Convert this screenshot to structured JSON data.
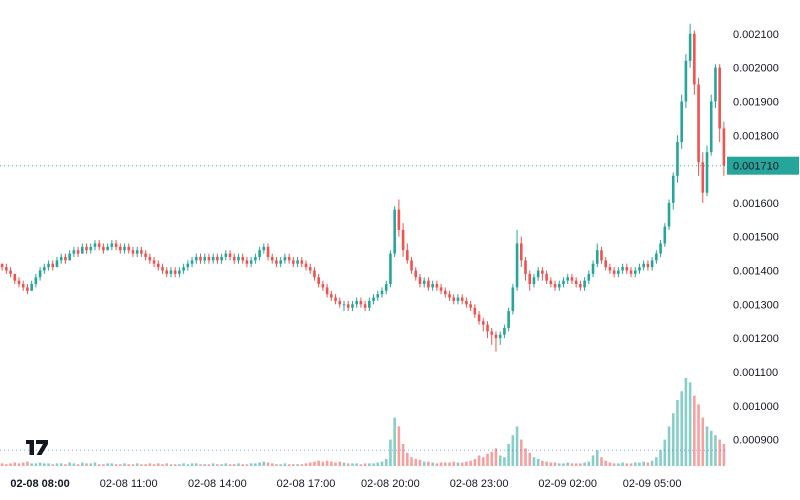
{
  "chart_data": {
    "type": "candlestick",
    "title": "",
    "last_price": "0.001710",
    "last_price_value": 0.00171,
    "price_scale": 1e-05,
    "ylim": [
      0.00081,
      0.0022
    ],
    "grid": "off",
    "legend_position": "none",
    "colors": {
      "up": "#26a69a",
      "down": "#ef5350",
      "badge_bg": "#26a69a",
      "badge_text": "#ffffff",
      "price_line": "#26a69a",
      "volume_line": "#2962ff",
      "axis_text": "#131722",
      "background": "#ffffff",
      "logo": "#131722"
    },
    "price_axis_labels": [
      "0.002100",
      "0.002000",
      "0.001900",
      "0.001800",
      "0.001600",
      "0.001500",
      "0.001400",
      "0.001300",
      "0.001200",
      "0.001100",
      "0.001000",
      "0.000900"
    ],
    "time_axis_labels": [
      {
        "label": "02-08 08:00",
        "index": 9,
        "bold": true
      },
      {
        "label": "02-08 11:00",
        "index": 30
      },
      {
        "label": "02-08 14:00",
        "index": 51
      },
      {
        "label": "02-08 17:00",
        "index": 72
      },
      {
        "label": "02-08 20:00",
        "index": 92
      },
      {
        "label": "02-08 23:00",
        "index": 113
      },
      {
        "label": "02-09 02:00",
        "index": 134
      },
      {
        "label": "02-09 05:00",
        "index": 154
      }
    ],
    "volume_baseline_pct": 18,
    "candles_format": [
      "open",
      "high",
      "low",
      "close",
      "volume_pct_of_max"
    ],
    "candles": [
      [
        142,
        142,
        140,
        141,
        3
      ],
      [
        141,
        142,
        139,
        140,
        2
      ],
      [
        140,
        141,
        138,
        139,
        3
      ],
      [
        139,
        139,
        136,
        137,
        4
      ],
      [
        137,
        138,
        135,
        136,
        3
      ],
      [
        136,
        137,
        134,
        135,
        4
      ],
      [
        135,
        136,
        133,
        134,
        5
      ],
      [
        134,
        137,
        134,
        136,
        3
      ],
      [
        136,
        139,
        135,
        138,
        3
      ],
      [
        138,
        141,
        137,
        140,
        4
      ],
      [
        140,
        142,
        139,
        141,
        3
      ],
      [
        141,
        143,
        140,
        142,
        3
      ],
      [
        142,
        143,
        140,
        141,
        2
      ],
      [
        141,
        144,
        141,
        143,
        3
      ],
      [
        143,
        145,
        142,
        144,
        3
      ],
      [
        144,
        145,
        142,
        143,
        2
      ],
      [
        143,
        146,
        143,
        145,
        4
      ],
      [
        145,
        147,
        144,
        146,
        3
      ],
      [
        146,
        147,
        144,
        145,
        2
      ],
      [
        145,
        148,
        145,
        147,
        4
      ],
      [
        147,
        148,
        145,
        146,
        3
      ],
      [
        146,
        148,
        145,
        147,
        3
      ],
      [
        147,
        149,
        146,
        148,
        4
      ],
      [
        148,
        149,
        146,
        147,
        2
      ],
      [
        147,
        148,
        145,
        146,
        2
      ],
      [
        146,
        148,
        146,
        147,
        3
      ],
      [
        147,
        149,
        146,
        148,
        3
      ],
      [
        148,
        149,
        146,
        147,
        2
      ],
      [
        147,
        148,
        145,
        146,
        2
      ],
      [
        146,
        148,
        145,
        147,
        3
      ],
      [
        147,
        148,
        145,
        146,
        2
      ],
      [
        146,
        147,
        144,
        145,
        2
      ],
      [
        145,
        147,
        144,
        146,
        3
      ],
      [
        146,
        147,
        144,
        145,
        2
      ],
      [
        145,
        146,
        143,
        144,
        2
      ],
      [
        144,
        145,
        142,
        143,
        3
      ],
      [
        143,
        144,
        141,
        142,
        2
      ],
      [
        142,
        143,
        140,
        141,
        3
      ],
      [
        141,
        142,
        139,
        140,
        2
      ],
      [
        140,
        141,
        138,
        139,
        3
      ],
      [
        139,
        141,
        138,
        140,
        2
      ],
      [
        140,
        141,
        138,
        139,
        2
      ],
      [
        139,
        141,
        138,
        140,
        2
      ],
      [
        140,
        142,
        139,
        141,
        3
      ],
      [
        141,
        143,
        140,
        142,
        2
      ],
      [
        142,
        144,
        141,
        143,
        3
      ],
      [
        143,
        145,
        142,
        144,
        3
      ],
      [
        144,
        145,
        142,
        143,
        2
      ],
      [
        143,
        145,
        142,
        144,
        2
      ],
      [
        144,
        145,
        142,
        143,
        2
      ],
      [
        143,
        145,
        142,
        144,
        3
      ],
      [
        144,
        145,
        142,
        143,
        2
      ],
      [
        143,
        145,
        142,
        144,
        2
      ],
      [
        144,
        146,
        143,
        145,
        3
      ],
      [
        145,
        146,
        143,
        144,
        2
      ],
      [
        144,
        145,
        142,
        143,
        2
      ],
      [
        143,
        145,
        142,
        144,
        3
      ],
      [
        144,
        145,
        142,
        143,
        2
      ],
      [
        143,
        144,
        141,
        142,
        2
      ],
      [
        142,
        144,
        141,
        143,
        3
      ],
      [
        143,
        145,
        142,
        144,
        3
      ],
      [
        144,
        147,
        143,
        146,
        4
      ],
      [
        146,
        148,
        145,
        147,
        5
      ],
      [
        147,
        148,
        143,
        144,
        4
      ],
      [
        144,
        145,
        142,
        143,
        3
      ],
      [
        143,
        144,
        141,
        142,
        2
      ],
      [
        142,
        144,
        141,
        143,
        2
      ],
      [
        143,
        145,
        142,
        144,
        3
      ],
      [
        144,
        145,
        142,
        143,
        2
      ],
      [
        143,
        144,
        141,
        142,
        2
      ],
      [
        142,
        144,
        141,
        143,
        2
      ],
      [
        143,
        144,
        141,
        142,
        2
      ],
      [
        142,
        143,
        140,
        141,
        3
      ],
      [
        141,
        142,
        139,
        140,
        4
      ],
      [
        140,
        141,
        137,
        138,
        5
      ],
      [
        138,
        139,
        135,
        136,
        6
      ],
      [
        136,
        137,
        134,
        135,
        5
      ],
      [
        135,
        136,
        132,
        133,
        6
      ],
      [
        133,
        134,
        131,
        132,
        5
      ],
      [
        132,
        133,
        130,
        131,
        4
      ],
      [
        131,
        132,
        129,
        130,
        5
      ],
      [
        130,
        131,
        128,
        130,
        4
      ],
      [
        130,
        131,
        128,
        129,
        3
      ],
      [
        129,
        131,
        128,
        130,
        3
      ],
      [
        130,
        132,
        129,
        131,
        3
      ],
      [
        131,
        132,
        129,
        130,
        2
      ],
      [
        130,
        131,
        128,
        129,
        3
      ],
      [
        129,
        132,
        128,
        131,
        3
      ],
      [
        131,
        133,
        130,
        132,
        3
      ],
      [
        132,
        134,
        131,
        133,
        4
      ],
      [
        133,
        135,
        132,
        134,
        5
      ],
      [
        134,
        137,
        133,
        136,
        8
      ],
      [
        136,
        146,
        135,
        145,
        30
      ],
      [
        145,
        159,
        144,
        158,
        55
      ],
      [
        158,
        161,
        150,
        152,
        45
      ],
      [
        152,
        154,
        144,
        146,
        25
      ],
      [
        146,
        148,
        142,
        143,
        15
      ],
      [
        143,
        144,
        139,
        140,
        10
      ],
      [
        140,
        141,
        137,
        138,
        8
      ],
      [
        138,
        139,
        135,
        136,
        7
      ],
      [
        136,
        138,
        135,
        137,
        5
      ],
      [
        137,
        138,
        134,
        135,
        5
      ],
      [
        135,
        137,
        134,
        136,
        4
      ],
      [
        136,
        137,
        134,
        135,
        3
      ],
      [
        135,
        136,
        133,
        134,
        4
      ],
      [
        134,
        135,
        132,
        133,
        4
      ],
      [
        133,
        134,
        131,
        132,
        4
      ],
      [
        132,
        133,
        130,
        131,
        5
      ],
      [
        131,
        133,
        130,
        132,
        4
      ],
      [
        132,
        133,
        130,
        131,
        4
      ],
      [
        131,
        132,
        129,
        130,
        5
      ],
      [
        130,
        131,
        128,
        129,
        6
      ],
      [
        129,
        130,
        126,
        127,
        8
      ],
      [
        127,
        128,
        124,
        125,
        12
      ],
      [
        125,
        126,
        122,
        124,
        10
      ],
      [
        124,
        125,
        120,
        122,
        14
      ],
      [
        122,
        123,
        118,
        121,
        16
      ],
      [
        121,
        122,
        116,
        120,
        20
      ],
      [
        120,
        122,
        118,
        121,
        12
      ],
      [
        121,
        124,
        120,
        123,
        10
      ],
      [
        123,
        129,
        122,
        128,
        25
      ],
      [
        128,
        136,
        127,
        135,
        35
      ],
      [
        135,
        152,
        134,
        148,
        45
      ],
      [
        148,
        150,
        141,
        143,
        30
      ],
      [
        143,
        144,
        137,
        139,
        20
      ],
      [
        139,
        140,
        134,
        136,
        15
      ],
      [
        136,
        139,
        135,
        138,
        10
      ],
      [
        138,
        141,
        137,
        140,
        8
      ],
      [
        140,
        141,
        137,
        139,
        6
      ],
      [
        139,
        140,
        136,
        137,
        5
      ],
      [
        137,
        138,
        135,
        136,
        4
      ],
      [
        136,
        137,
        134,
        135,
        4
      ],
      [
        135,
        137,
        134,
        136,
        3
      ],
      [
        136,
        138,
        135,
        137,
        3
      ],
      [
        137,
        139,
        136,
        138,
        4
      ],
      [
        138,
        139,
        136,
        137,
        3
      ],
      [
        137,
        138,
        135,
        136,
        3
      ],
      [
        136,
        137,
        134,
        135,
        3
      ],
      [
        135,
        138,
        134,
        137,
        4
      ],
      [
        137,
        140,
        136,
        139,
        5
      ],
      [
        139,
        143,
        138,
        142,
        12
      ],
      [
        142,
        148,
        141,
        146,
        18
      ],
      [
        146,
        147,
        142,
        143,
        10
      ],
      [
        143,
        144,
        140,
        141,
        6
      ],
      [
        141,
        142,
        139,
        140,
        4
      ],
      [
        140,
        141,
        138,
        139,
        3
      ],
      [
        139,
        141,
        138,
        140,
        3
      ],
      [
        140,
        142,
        139,
        141,
        4
      ],
      [
        141,
        142,
        139,
        140,
        3
      ],
      [
        140,
        141,
        138,
        139,
        3
      ],
      [
        139,
        141,
        138,
        140,
        4
      ],
      [
        140,
        142,
        139,
        141,
        4
      ],
      [
        141,
        143,
        140,
        142,
        5
      ],
      [
        142,
        143,
        140,
        141,
        4
      ],
      [
        141,
        144,
        140,
        143,
        6
      ],
      [
        143,
        146,
        142,
        145,
        10
      ],
      [
        145,
        149,
        144,
        148,
        18
      ],
      [
        148,
        154,
        147,
        153,
        30
      ],
      [
        153,
        161,
        152,
        160,
        45
      ],
      [
        160,
        169,
        158,
        168,
        60
      ],
      [
        168,
        180,
        166,
        178,
        75
      ],
      [
        178,
        192,
        176,
        190,
        85
      ],
      [
        190,
        204,
        188,
        202,
        100
      ],
      [
        202,
        213,
        200,
        210,
        95
      ],
      [
        210,
        211,
        192,
        195,
        80
      ],
      [
        195,
        197,
        168,
        172,
        70
      ],
      [
        172,
        175,
        160,
        163,
        55
      ],
      [
        163,
        177,
        162,
        175,
        45
      ],
      [
        175,
        192,
        174,
        190,
        40
      ],
      [
        190,
        201,
        188,
        200,
        35
      ],
      [
        200,
        201,
        178,
        182,
        30
      ],
      [
        182,
        184,
        168,
        171,
        25
      ]
    ]
  },
  "logo": {
    "label": "TradingView"
  }
}
